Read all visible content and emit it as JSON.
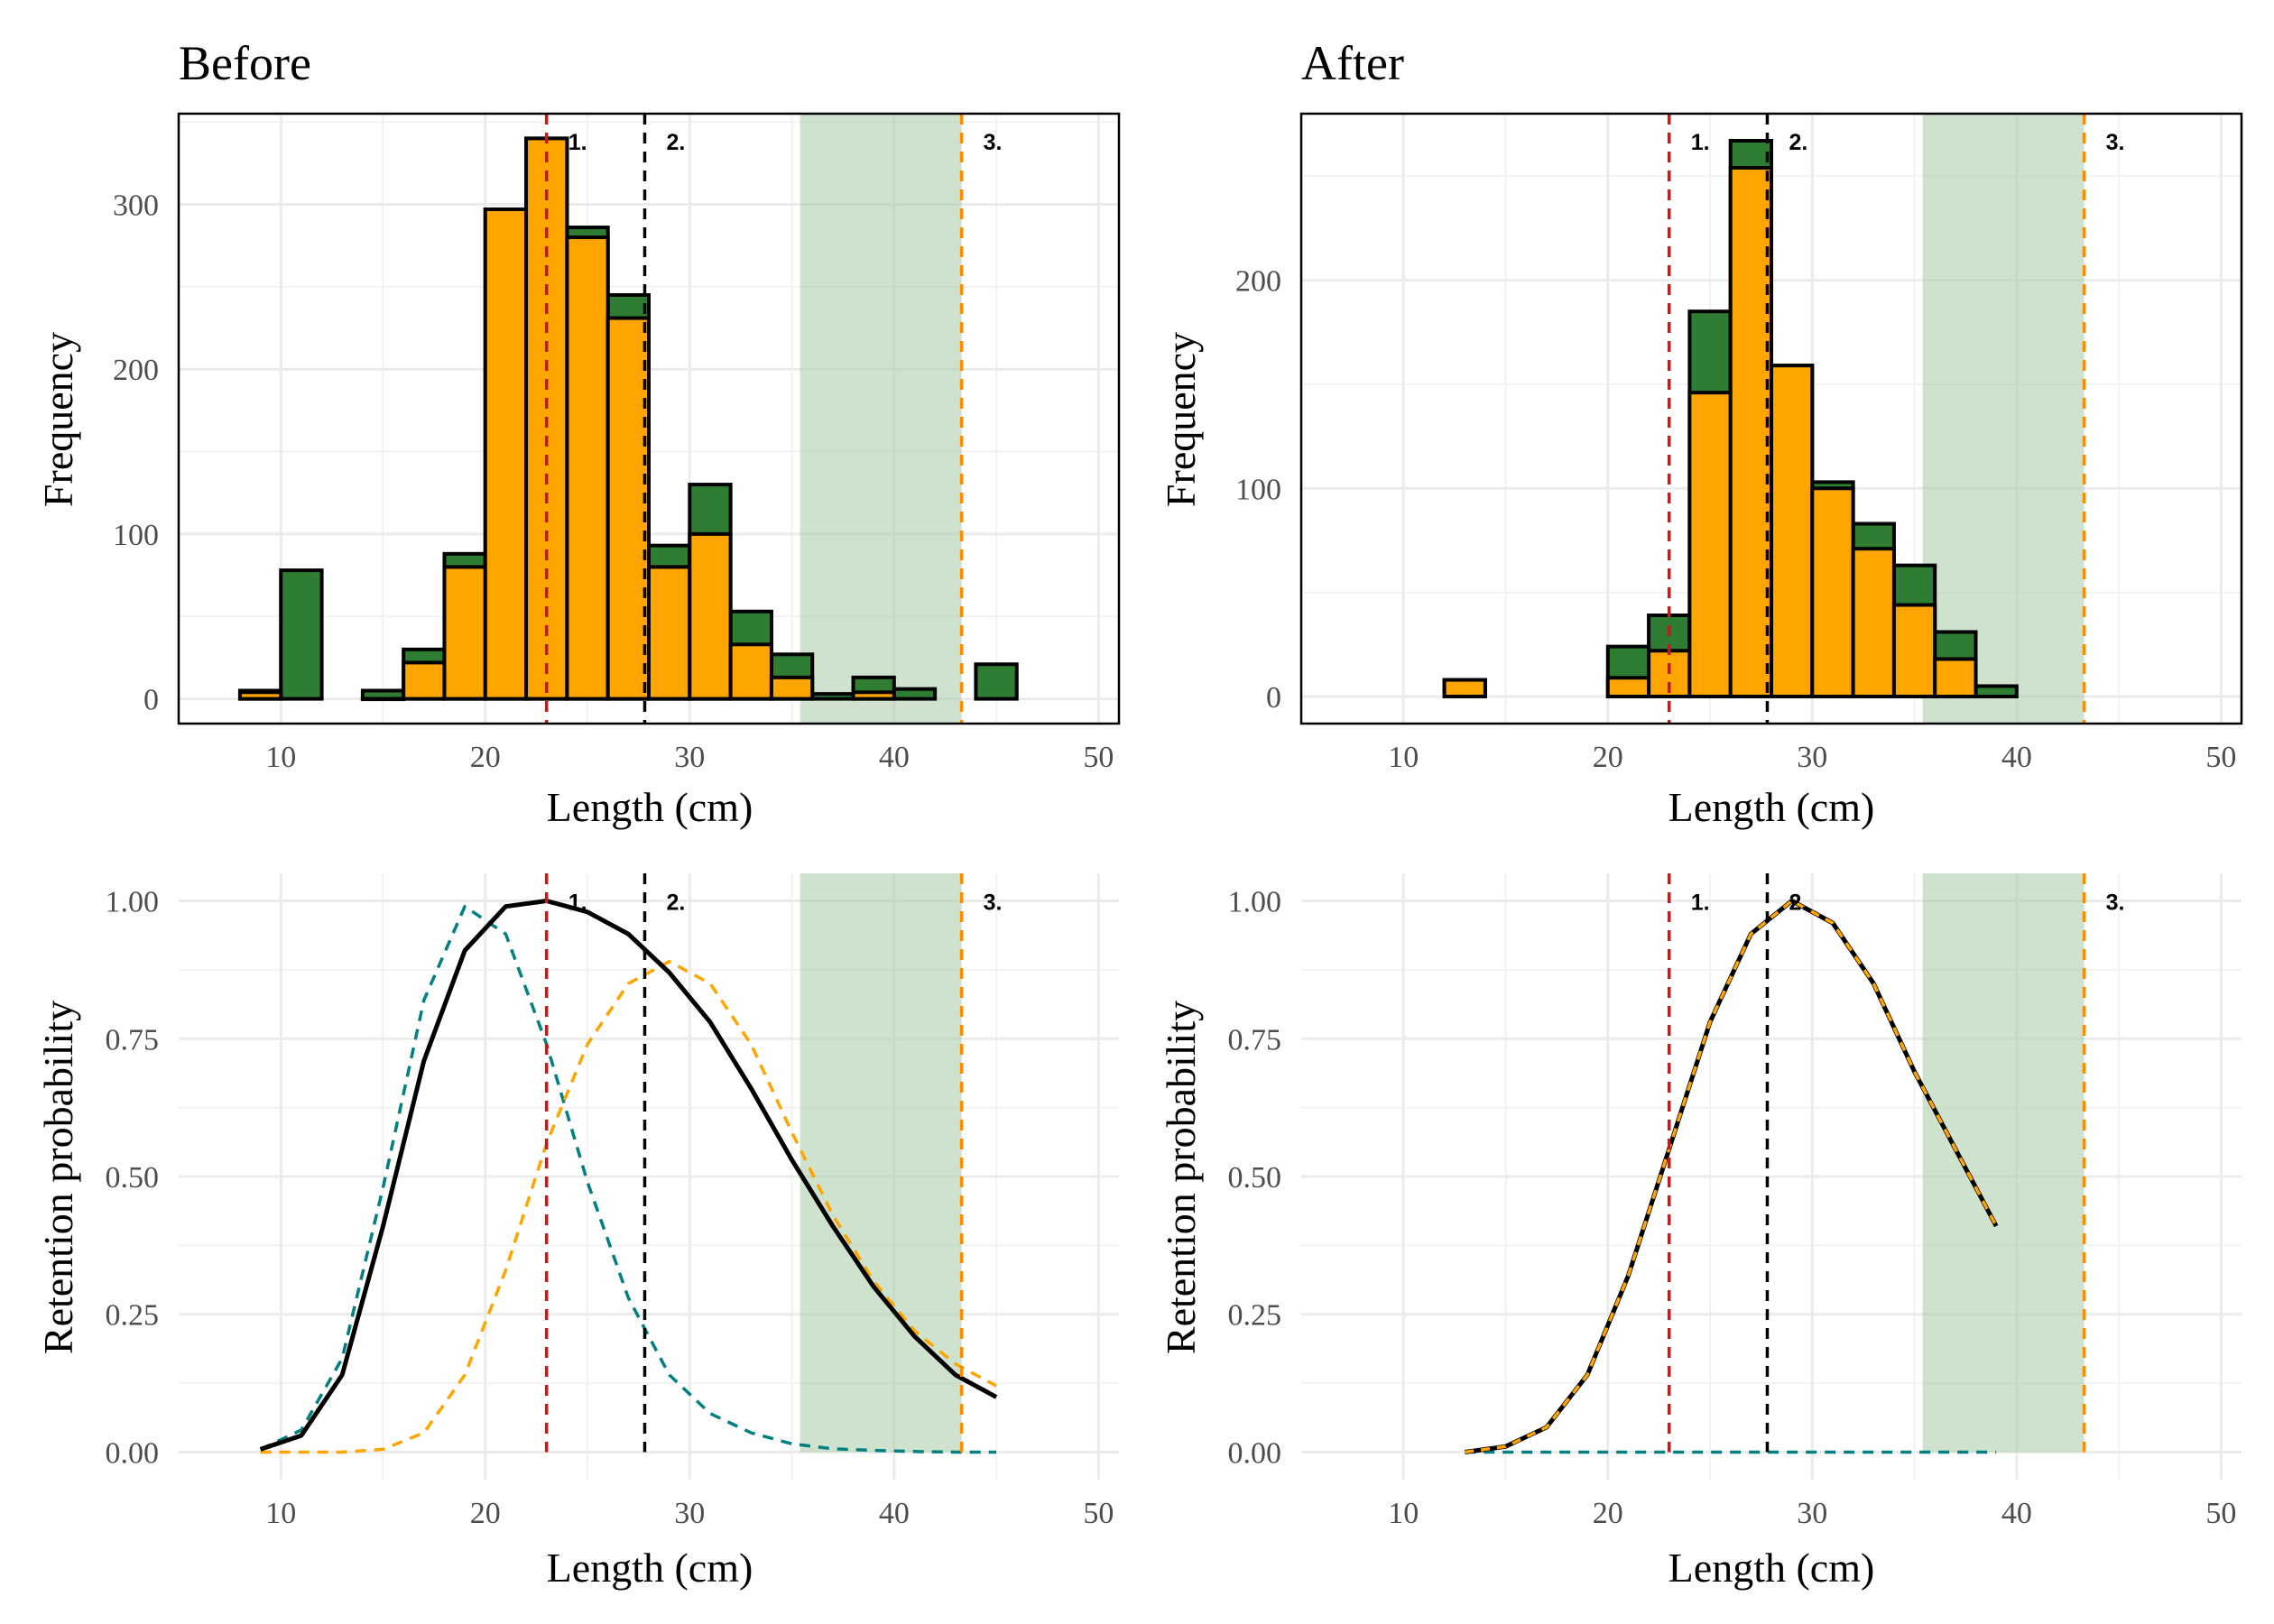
{
  "colors": {
    "total": "#2e7d32",
    "retained": "#ffa500",
    "fit_total": "#000000",
    "fit_retained": "#ffa500",
    "fit_discarded": "#008080",
    "ref1": "#b22222",
    "ref2": "#000000",
    "ref3": "#ff8c00",
    "band": "#a5cba5"
  },
  "chart_data": [
    {
      "type": "bar",
      "title": "Before",
      "xlabel": "Length (cm)",
      "ylabel": "Frequency",
      "xlim": [
        5,
        51
      ],
      "ylim": [
        -15,
        355
      ],
      "xticks": [
        10,
        20,
        30,
        40,
        50
      ],
      "xtick_labels": [
        "10",
        "20",
        "30",
        "40",
        "50"
      ],
      "yticks": [
        0,
        100,
        200,
        300
      ],
      "ytick_labels": [
        "0",
        "100",
        "200",
        "300"
      ],
      "grid": true,
      "bin_width": 2,
      "series": [
        {
          "key": "total",
          "x": [
            9,
            11,
            15,
            17,
            19,
            21,
            23,
            25,
            27,
            29,
            31,
            33,
            35,
            37,
            39,
            41,
            45
          ],
          "values": [
            5,
            78,
            5,
            30,
            88,
            297,
            340,
            286,
            245,
            93,
            130,
            53,
            27,
            3,
            13,
            6,
            21
          ]
        },
        {
          "key": "retained",
          "x": [
            9,
            15,
            17,
            19,
            21,
            23,
            25,
            27,
            29,
            31,
            33,
            35,
            39
          ],
          "values": [
            4,
            0,
            22,
            80,
            297,
            340,
            280,
            231,
            80,
            100,
            33,
            13,
            4
          ]
        }
      ],
      "vlines": [
        {
          "label": "1.",
          "x": 23.0,
          "color": "ref1"
        },
        {
          "label": "2.",
          "x": 27.8,
          "color": "ref2"
        },
        {
          "label": "3.",
          "x": 43.3,
          "color": "ref3"
        }
      ],
      "band": [
        35.4,
        43.3
      ]
    },
    {
      "type": "bar",
      "title": "After",
      "xlabel": "Length (cm)",
      "ylabel": "Frequency",
      "xlim": [
        5,
        51
      ],
      "ylim": [
        -13,
        280
      ],
      "xticks": [
        10,
        20,
        30,
        40,
        50
      ],
      "xtick_labels": [
        "10",
        "20",
        "30",
        "40",
        "50"
      ],
      "yticks": [
        0,
        100,
        200
      ],
      "ytick_labels": [
        "0",
        "100",
        "200"
      ],
      "grid": true,
      "bin_width": 2,
      "series": [
        {
          "key": "total",
          "x": [
            13,
            21,
            23,
            25,
            27,
            29,
            31,
            33,
            35,
            37,
            39
          ],
          "values": [
            8,
            24,
            39,
            185,
            267,
            159,
            103,
            83,
            63,
            31,
            5
          ]
        },
        {
          "key": "retained",
          "x": [
            13,
            21,
            23,
            25,
            27,
            29,
            31,
            33,
            35,
            37
          ],
          "values": [
            8,
            9,
            22,
            146,
            254,
            159,
            100,
            71,
            44,
            18
          ]
        }
      ],
      "vlines": [
        {
          "label": "1.",
          "x": 23.0,
          "color": "ref1"
        },
        {
          "label": "2.",
          "x": 27.8,
          "color": "ref2"
        },
        {
          "label": "3.",
          "x": 43.3,
          "color": "ref3"
        }
      ],
      "band": [
        35.4,
        43.3
      ]
    },
    {
      "type": "line",
      "xlabel": "Length (cm)",
      "ylabel": "Retention probability",
      "xlim": [
        5,
        51
      ],
      "ylim": [
        -0.05,
        1.05
      ],
      "xticks": [
        10,
        20,
        30,
        40,
        50
      ],
      "xtick_labels": [
        "10",
        "20",
        "30",
        "40",
        "50"
      ],
      "yticks": [
        0,
        0.25,
        0.5,
        0.75,
        1.0
      ],
      "ytick_labels": [
        "0.00",
        "0.25",
        "0.50",
        "0.75",
        "1.00"
      ],
      "grid": true,
      "series": [
        {
          "key": "fit_discarded",
          "dash": true,
          "x": [
            9,
            11,
            13,
            15,
            17,
            19,
            21,
            23,
            25,
            27,
            29,
            31,
            33,
            35,
            37,
            39,
            41,
            43,
            45
          ],
          "values": [
            0.005,
            0.04,
            0.17,
            0.48,
            0.82,
            0.99,
            0.94,
            0.74,
            0.49,
            0.28,
            0.14,
            0.07,
            0.035,
            0.015,
            0.006,
            0.003,
            0.001,
            0.0,
            0.0
          ]
        },
        {
          "key": "fit_retained",
          "dash": true,
          "x": [
            9,
            11,
            13,
            15,
            17,
            19,
            21,
            23,
            25,
            27,
            29,
            31,
            33,
            35,
            37,
            39,
            41,
            43,
            45
          ],
          "values": [
            0.0,
            0.0,
            0.0,
            0.005,
            0.035,
            0.14,
            0.33,
            0.56,
            0.74,
            0.85,
            0.89,
            0.85,
            0.74,
            0.58,
            0.43,
            0.31,
            0.22,
            0.16,
            0.12
          ]
        },
        {
          "key": "fit_total",
          "dash": false,
          "x": [
            9,
            11,
            13,
            15,
            17,
            19,
            21,
            23,
            25,
            27,
            29,
            31,
            33,
            35,
            37,
            39,
            41,
            43,
            45
          ],
          "values": [
            0.005,
            0.03,
            0.14,
            0.41,
            0.71,
            0.91,
            0.99,
            1.0,
            0.98,
            0.94,
            0.87,
            0.78,
            0.66,
            0.53,
            0.41,
            0.3,
            0.21,
            0.14,
            0.1
          ]
        }
      ],
      "vlines": [
        {
          "label": "1.",
          "x": 23.0,
          "color": "ref1"
        },
        {
          "label": "2.",
          "x": 27.8,
          "color": "ref2"
        },
        {
          "label": "3.",
          "x": 43.3,
          "color": "ref3"
        }
      ],
      "band": [
        35.4,
        43.3
      ]
    },
    {
      "type": "line",
      "xlabel": "Length (cm)",
      "ylabel": "Retention probability",
      "xlim": [
        5,
        51
      ],
      "ylim": [
        -0.05,
        1.05
      ],
      "xticks": [
        10,
        20,
        30,
        40,
        50
      ],
      "xtick_labels": [
        "10",
        "20",
        "30",
        "40",
        "50"
      ],
      "yticks": [
        0,
        0.25,
        0.5,
        0.75,
        1.0
      ],
      "ytick_labels": [
        "0.00",
        "0.25",
        "0.50",
        "0.75",
        "1.00"
      ],
      "grid": true,
      "series": [
        {
          "key": "fit_discarded",
          "dash": true,
          "x": [
            13,
            15,
            17,
            19,
            21,
            23,
            25,
            27,
            29,
            31,
            33,
            35,
            37,
            39
          ],
          "values": [
            0,
            0,
            0,
            0,
            0,
            0,
            0,
            0,
            0,
            0,
            0,
            0,
            0,
            0
          ]
        },
        {
          "key": "fit_total",
          "dash": false,
          "x": [
            13,
            15,
            17,
            19,
            21,
            23,
            25,
            27,
            29,
            31,
            33,
            35,
            37,
            39
          ],
          "values": [
            0.0,
            0.01,
            0.045,
            0.14,
            0.32,
            0.55,
            0.78,
            0.94,
            1.0,
            0.96,
            0.85,
            0.69,
            0.55,
            0.41
          ]
        },
        {
          "key": "fit_retained",
          "dash": true,
          "overlay": true,
          "x": [
            13,
            15,
            17,
            19,
            21,
            23,
            25,
            27,
            29,
            31,
            33,
            35,
            37,
            39
          ],
          "values": [
            0.0,
            0.01,
            0.045,
            0.14,
            0.32,
            0.55,
            0.78,
            0.94,
            1.0,
            0.96,
            0.85,
            0.69,
            0.55,
            0.41
          ]
        }
      ],
      "vlines": [
        {
          "label": "1.",
          "x": 23.0,
          "color": "ref1"
        },
        {
          "label": "2.",
          "x": 27.8,
          "color": "ref2"
        },
        {
          "label": "3.",
          "x": 43.3,
          "color": "ref3"
        }
      ],
      "band": [
        35.4,
        43.3
      ]
    }
  ]
}
